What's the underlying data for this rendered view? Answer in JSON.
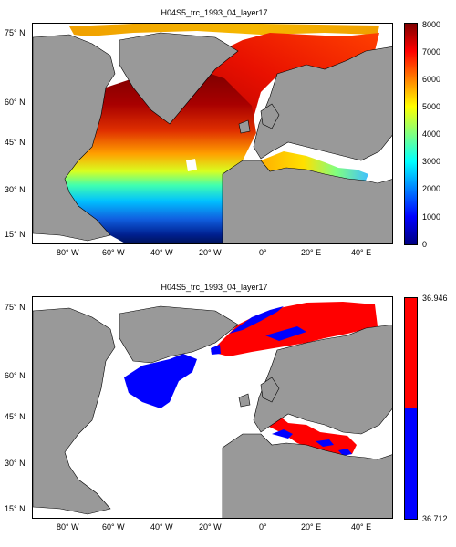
{
  "map_top": {
    "title": "H04S5_trc_1993_04_layer17",
    "lat_labels": [
      "75° N",
      "60° N",
      "45° N",
      "30° N",
      "15° N"
    ],
    "lon_labels": [
      "80° W",
      "60° W",
      "40° W",
      "20° W",
      "0°",
      "20° E",
      "40° E"
    ],
    "colorbar": {
      "ticks": [
        "8000",
        "7000",
        "6000",
        "5000",
        "4000",
        "3000",
        "2000",
        "1000",
        "0"
      ],
      "range": [
        0,
        8000
      ],
      "colormap": "jet"
    }
  },
  "map_bottom": {
    "title": "H04S5_trc_1993_04_layer17",
    "lat_labels": [
      "75° N",
      "60° N",
      "45° N",
      "30° N",
      "15° N"
    ],
    "lon_labels": [
      "80° W",
      "60° W",
      "40° W",
      "20° W",
      "0°",
      "20° E",
      "40° E"
    ],
    "colorbar": {
      "max_label": "36.946",
      "min_label": "36.712",
      "colors": [
        "#ff0000",
        "#0000ff"
      ]
    }
  },
  "colors": {
    "land": "#999999",
    "ocean_nodata": "#ffffff",
    "red": "#ff0000",
    "blue": "#0000ff"
  }
}
